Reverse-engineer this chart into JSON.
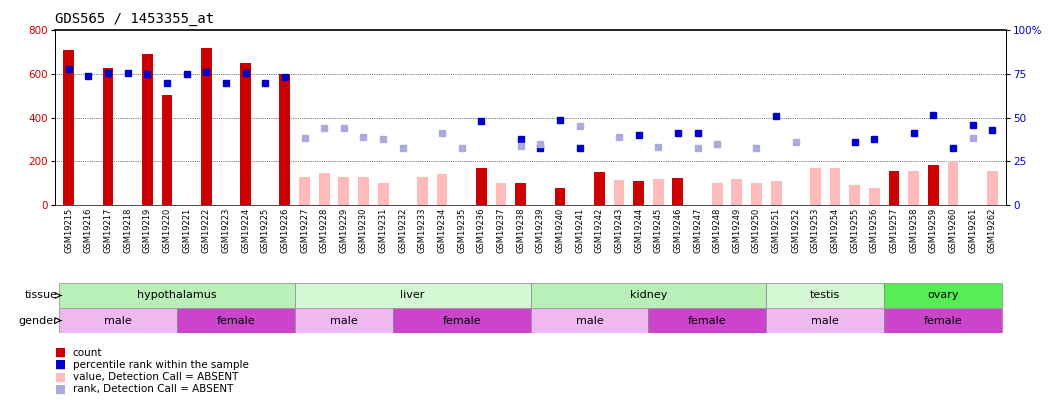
{
  "title": "GDS565 / 1453355_at",
  "samples": [
    "GSM19215",
    "GSM19216",
    "GSM19217",
    "GSM19218",
    "GSM19219",
    "GSM19220",
    "GSM19221",
    "GSM19222",
    "GSM19223",
    "GSM19224",
    "GSM19225",
    "GSM19226",
    "GSM19227",
    "GSM19228",
    "GSM19229",
    "GSM19230",
    "GSM19231",
    "GSM19232",
    "GSM19233",
    "GSM19234",
    "GSM19235",
    "GSM19236",
    "GSM19237",
    "GSM19238",
    "GSM19239",
    "GSM19240",
    "GSM19241",
    "GSM19242",
    "GSM19243",
    "GSM19244",
    "GSM19245",
    "GSM19246",
    "GSM19247",
    "GSM19248",
    "GSM19249",
    "GSM19250",
    "GSM19251",
    "GSM19252",
    "GSM19253",
    "GSM19254",
    "GSM19255",
    "GSM19256",
    "GSM19257",
    "GSM19258",
    "GSM19259",
    "GSM19260",
    "GSM19261",
    "GSM19262"
  ],
  "count_present": [
    710,
    null,
    625,
    null,
    690,
    505,
    null,
    720,
    null,
    650,
    null,
    600,
    null,
    null,
    null,
    null,
    null,
    null,
    null,
    null,
    null,
    170,
    null,
    100,
    null,
    80,
    null,
    150,
    null,
    110,
    null,
    125,
    null,
    null,
    null,
    null,
    null,
    null,
    null,
    null,
    null,
    null,
    155,
    null,
    185,
    null,
    null,
    null
  ],
  "count_absent": [
    null,
    null,
    null,
    null,
    null,
    null,
    null,
    null,
    null,
    null,
    null,
    null,
    130,
    145,
    130,
    130,
    100,
    null,
    130,
    140,
    null,
    null,
    100,
    null,
    null,
    null,
    null,
    null,
    115,
    null,
    120,
    null,
    null,
    100,
    120,
    100,
    110,
    null,
    170,
    170,
    90,
    80,
    null,
    155,
    null,
    200,
    null,
    155
  ],
  "rank_present": [
    620,
    590,
    605,
    605,
    600,
    560,
    600,
    610,
    560,
    605,
    560,
    585,
    null,
    null,
    null,
    null,
    null,
    null,
    null,
    null,
    null,
    385,
    null,
    300,
    260,
    390,
    260,
    null,
    null,
    320,
    null,
    330,
    330,
    null,
    null,
    null,
    405,
    null,
    null,
    null,
    290,
    300,
    null,
    330,
    410,
    260,
    365,
    345
  ],
  "rank_absent": [
    null,
    null,
    null,
    null,
    null,
    null,
    null,
    null,
    null,
    null,
    null,
    null,
    305,
    350,
    350,
    310,
    300,
    260,
    null,
    330,
    260,
    null,
    null,
    270,
    280,
    null,
    360,
    null,
    310,
    null,
    265,
    null,
    260,
    280,
    null,
    260,
    null,
    290,
    null,
    null,
    null,
    null,
    null,
    null,
    null,
    null,
    305,
    null
  ],
  "tissues": [
    {
      "name": "hypothalamus",
      "start": 0,
      "end": 12,
      "color": "#b8f0b8"
    },
    {
      "name": "liver",
      "start": 12,
      "end": 24,
      "color": "#d4f8d4"
    },
    {
      "name": "kidney",
      "start": 24,
      "end": 36,
      "color": "#b8f0b8"
    },
    {
      "name": "testis",
      "start": 36,
      "end": 42,
      "color": "#d4f8d4"
    },
    {
      "name": "ovary",
      "start": 42,
      "end": 48,
      "color": "#55ee55"
    }
  ],
  "genders": [
    {
      "name": "male",
      "start": 0,
      "end": 6,
      "color": "#f0b8f0"
    },
    {
      "name": "female",
      "start": 6,
      "end": 12,
      "color": "#cc44cc"
    },
    {
      "name": "male",
      "start": 12,
      "end": 17,
      "color": "#f0b8f0"
    },
    {
      "name": "female",
      "start": 17,
      "end": 24,
      "color": "#cc44cc"
    },
    {
      "name": "male",
      "start": 24,
      "end": 30,
      "color": "#f0b8f0"
    },
    {
      "name": "female",
      "start": 30,
      "end": 36,
      "color": "#cc44cc"
    },
    {
      "name": "male",
      "start": 36,
      "end": 42,
      "color": "#f0b8f0"
    },
    {
      "name": "female",
      "start": 42,
      "end": 48,
      "color": "#cc44cc"
    }
  ],
  "ylim_left": [
    0,
    800
  ],
  "ylim_right": [
    0,
    100
  ],
  "yticks_left": [
    0,
    200,
    400,
    600,
    800
  ],
  "yticks_right": [
    0,
    25,
    50,
    75,
    100
  ],
  "bar_width": 0.55,
  "color_count_present": "#cc0000",
  "color_count_absent": "#ffbbbb",
  "color_rank_present": "#0000cc",
  "color_rank_absent": "#aaaadd",
  "title_fontsize": 10,
  "tick_fontsize": 6.0,
  "axis_fontsize": 7.5,
  "legend_fontsize": 7.5,
  "row_fontsize": 8.0
}
